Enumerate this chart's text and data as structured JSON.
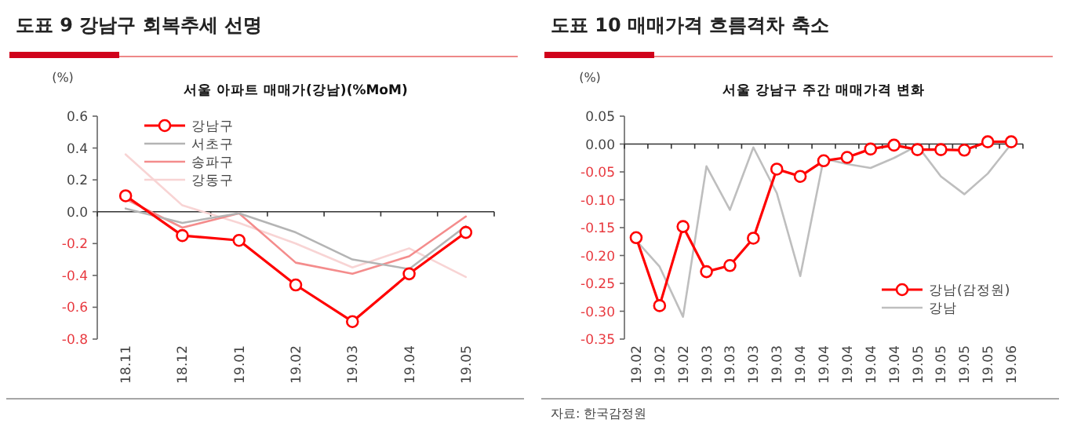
{
  "chart_data": [
    {
      "type": "line",
      "title": "도표 9  강남구 회복추세 선명",
      "subtitle": "서울 아파트 매매가(강남)(%MoM)",
      "ylabel": "(%)",
      "categories": [
        "18.11",
        "18.12",
        "19.01",
        "19.02",
        "19.03",
        "19.04",
        "19.05"
      ],
      "series": [
        {
          "name": "강남구",
          "color": "#ff0000",
          "marker": "circle",
          "values": [
            0.1,
            -0.15,
            -0.18,
            -0.46,
            -0.69,
            -0.39,
            -0.13
          ]
        },
        {
          "name": "서초구",
          "color": "#b4b4b4",
          "marker": "none",
          "values": [
            0.02,
            -0.07,
            -0.01,
            -0.13,
            -0.3,
            -0.36,
            -0.09
          ]
        },
        {
          "name": "송파구",
          "color": "#f48c8c",
          "marker": "none",
          "values": [
            0.08,
            -0.1,
            -0.01,
            -0.32,
            -0.39,
            -0.28,
            -0.03
          ]
        },
        {
          "name": "강동구",
          "color": "#f8d4d4",
          "marker": "none",
          "values": [
            0.36,
            0.04,
            -0.07,
            -0.2,
            -0.35,
            -0.23,
            -0.41
          ]
        }
      ],
      "ylim": [
        -0.8,
        0.6
      ],
      "yticks": [
        {
          "value": -0.8,
          "label": "-0.8"
        },
        {
          "value": -0.6,
          "label": "-0.6"
        },
        {
          "value": -0.4,
          "label": "-0.4"
        },
        {
          "value": -0.2,
          "label": "-0.2"
        },
        {
          "value": 0,
          "label": "0.0"
        },
        {
          "value": 0.2,
          "label": "0.2"
        },
        {
          "value": 0.4,
          "label": "0.4"
        },
        {
          "value": 0.6,
          "label": "0.6"
        }
      ],
      "legend": "top left"
    },
    {
      "type": "line",
      "title": "도표 10  매매가격 흐름격차 축소",
      "subtitle": "서울 강남구 주간 매매가격 변화",
      "ylabel": "(%)",
      "annotations": [
        "자료: 한국감정원"
      ],
      "categories": [
        "19.02",
        "19.02",
        "19.02",
        "19.03",
        "19.03",
        "19.03",
        "19.03",
        "19.04",
        "19.04",
        "19.04",
        "19.04",
        "19.04",
        "19.05",
        "19.05",
        "19.05",
        "19.05",
        "19.06"
      ],
      "series": [
        {
          "name": "강남(감정원)",
          "color": "#ff0000",
          "marker": "circle",
          "values": [
            -0.168,
            -0.29,
            -0.148,
            -0.229,
            -0.218,
            -0.169,
            -0.045,
            -0.058,
            -0.03,
            -0.024,
            -0.009,
            -0.002,
            -0.01,
            -0.01,
            -0.011,
            0.004,
            0.004
          ]
        },
        {
          "name": "강남",
          "color": "#bebebe",
          "marker": "none",
          "values": [
            -0.173,
            -0.22,
            -0.31,
            -0.04,
            -0.118,
            -0.006,
            -0.088,
            -0.237,
            -0.026,
            -0.036,
            -0.043,
            -0.025,
            -0.003,
            -0.058,
            -0.09,
            -0.053,
            0.0
          ]
        }
      ],
      "ylim": [
        -0.35,
        0.05
      ],
      "yticks": [
        {
          "value": -0.35,
          "label": "-0.35"
        },
        {
          "value": -0.3,
          "label": "-0.30"
        },
        {
          "value": -0.25,
          "label": "-0.25"
        },
        {
          "value": -0.2,
          "label": "-0.20"
        },
        {
          "value": -0.15,
          "label": "-0.15"
        },
        {
          "value": -0.1,
          "label": "-0.10"
        },
        {
          "value": -0.05,
          "label": "-0.05"
        },
        {
          "value": 0,
          "label": "0.00"
        },
        {
          "value": 0.05,
          "label": "0.05"
        }
      ],
      "legend": "bottom right"
    }
  ]
}
